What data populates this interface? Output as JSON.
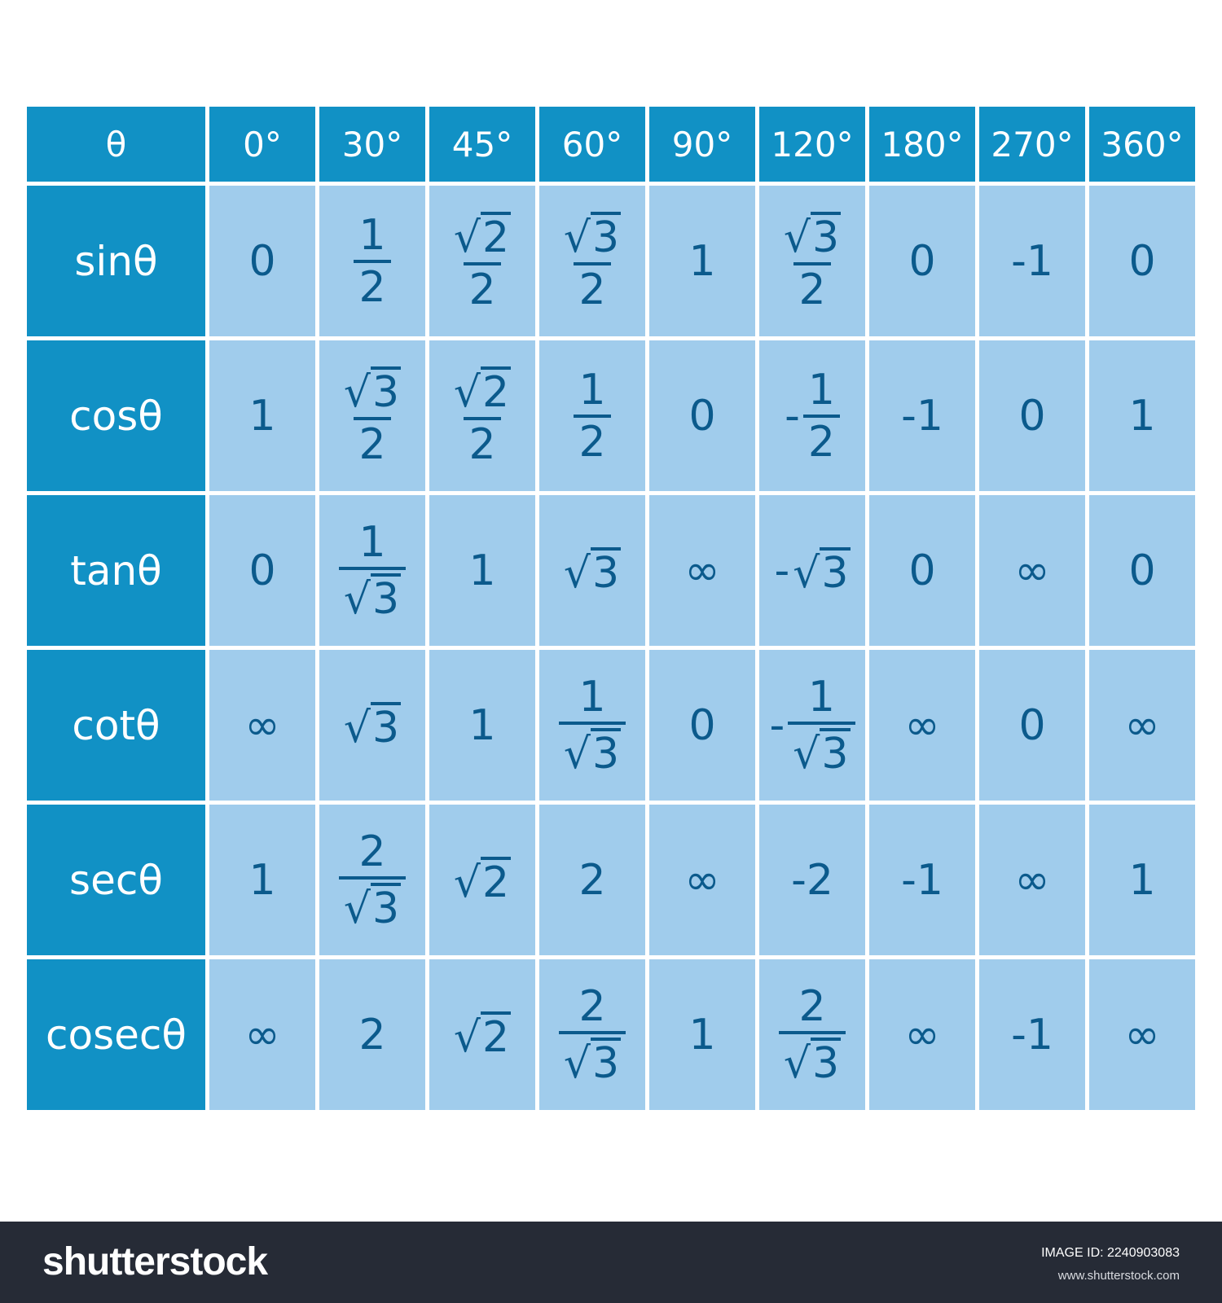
{
  "table": {
    "corner": "θ",
    "columns": [
      "0°",
      "30°",
      "45°",
      "60°",
      "90°",
      "120°",
      "180°",
      "270°",
      "360°"
    ],
    "rows": [
      {
        "label": "sinθ",
        "values": [
          {
            "t": "n",
            "v": "0"
          },
          {
            "t": "f",
            "num": "1",
            "den": "2"
          },
          {
            "t": "f",
            "num_r": "2",
            "den": "2"
          },
          {
            "t": "f",
            "num_r": "3",
            "den": "2"
          },
          {
            "t": "n",
            "v": "1"
          },
          {
            "t": "f",
            "num_r": "3",
            "den": "2"
          },
          {
            "t": "n",
            "v": "0"
          },
          {
            "t": "n",
            "v": "-1"
          },
          {
            "t": "n",
            "v": "0"
          }
        ]
      },
      {
        "label": "cosθ",
        "values": [
          {
            "t": "n",
            "v": "1"
          },
          {
            "t": "f",
            "num_r": "3",
            "den": "2"
          },
          {
            "t": "f",
            "num_r": "2",
            "den": "2"
          },
          {
            "t": "f",
            "num": "1",
            "den": "2"
          },
          {
            "t": "n",
            "v": "0"
          },
          {
            "t": "f",
            "neg": "-",
            "num": "1",
            "den": "2"
          },
          {
            "t": "n",
            "v": "-1"
          },
          {
            "t": "n",
            "v": "0"
          },
          {
            "t": "n",
            "v": "1"
          }
        ]
      },
      {
        "label": "tanθ",
        "values": [
          {
            "t": "n",
            "v": "0"
          },
          {
            "t": "f",
            "num": "1",
            "den_r": "3"
          },
          {
            "t": "n",
            "v": "1"
          },
          {
            "t": "r",
            "r": "3"
          },
          {
            "t": "n",
            "v": "∞"
          },
          {
            "t": "r",
            "neg": "-",
            "r": "3"
          },
          {
            "t": "n",
            "v": "0"
          },
          {
            "t": "n",
            "v": "∞"
          },
          {
            "t": "n",
            "v": "0"
          }
        ]
      },
      {
        "label": "cotθ",
        "values": [
          {
            "t": "n",
            "v": "∞"
          },
          {
            "t": "r",
            "r": "3"
          },
          {
            "t": "n",
            "v": "1"
          },
          {
            "t": "f",
            "num": "1",
            "den_r": "3"
          },
          {
            "t": "n",
            "v": "0"
          },
          {
            "t": "f",
            "neg": "-",
            "num": "1",
            "den_r": "3"
          },
          {
            "t": "n",
            "v": "∞"
          },
          {
            "t": "n",
            "v": "0"
          },
          {
            "t": "n",
            "v": "∞"
          }
        ]
      },
      {
        "label": "secθ",
        "values": [
          {
            "t": "n",
            "v": "1"
          },
          {
            "t": "f",
            "num": "2",
            "den_r": "3"
          },
          {
            "t": "r",
            "r": "2"
          },
          {
            "t": "n",
            "v": "2"
          },
          {
            "t": "n",
            "v": "∞"
          },
          {
            "t": "n",
            "v": "-2"
          },
          {
            "t": "n",
            "v": "-1"
          },
          {
            "t": "n",
            "v": "∞"
          },
          {
            "t": "n",
            "v": "1"
          }
        ]
      },
      {
        "label": "cosecθ",
        "values": [
          {
            "t": "n",
            "v": "∞"
          },
          {
            "t": "n",
            "v": "2"
          },
          {
            "t": "r",
            "r": "2"
          },
          {
            "t": "f",
            "num": "2",
            "den_r": "3"
          },
          {
            "t": "n",
            "v": "1"
          },
          {
            "t": "f",
            "num": "2",
            "den_r": "3"
          },
          {
            "t": "n",
            "v": "∞"
          },
          {
            "t": "n",
            "v": "-1"
          },
          {
            "t": "n",
            "v": "∞"
          }
        ]
      }
    ]
  },
  "footer": {
    "brand": "shutterstock",
    "image_id": "IMAGE ID: 2240903083",
    "site": "www.shutterstock.com"
  },
  "colors": {
    "header_bg": "#1191c5",
    "cell_bg": "#a0ccec",
    "cell_text": "#0b5a8c",
    "footer_bg": "#262b36"
  }
}
